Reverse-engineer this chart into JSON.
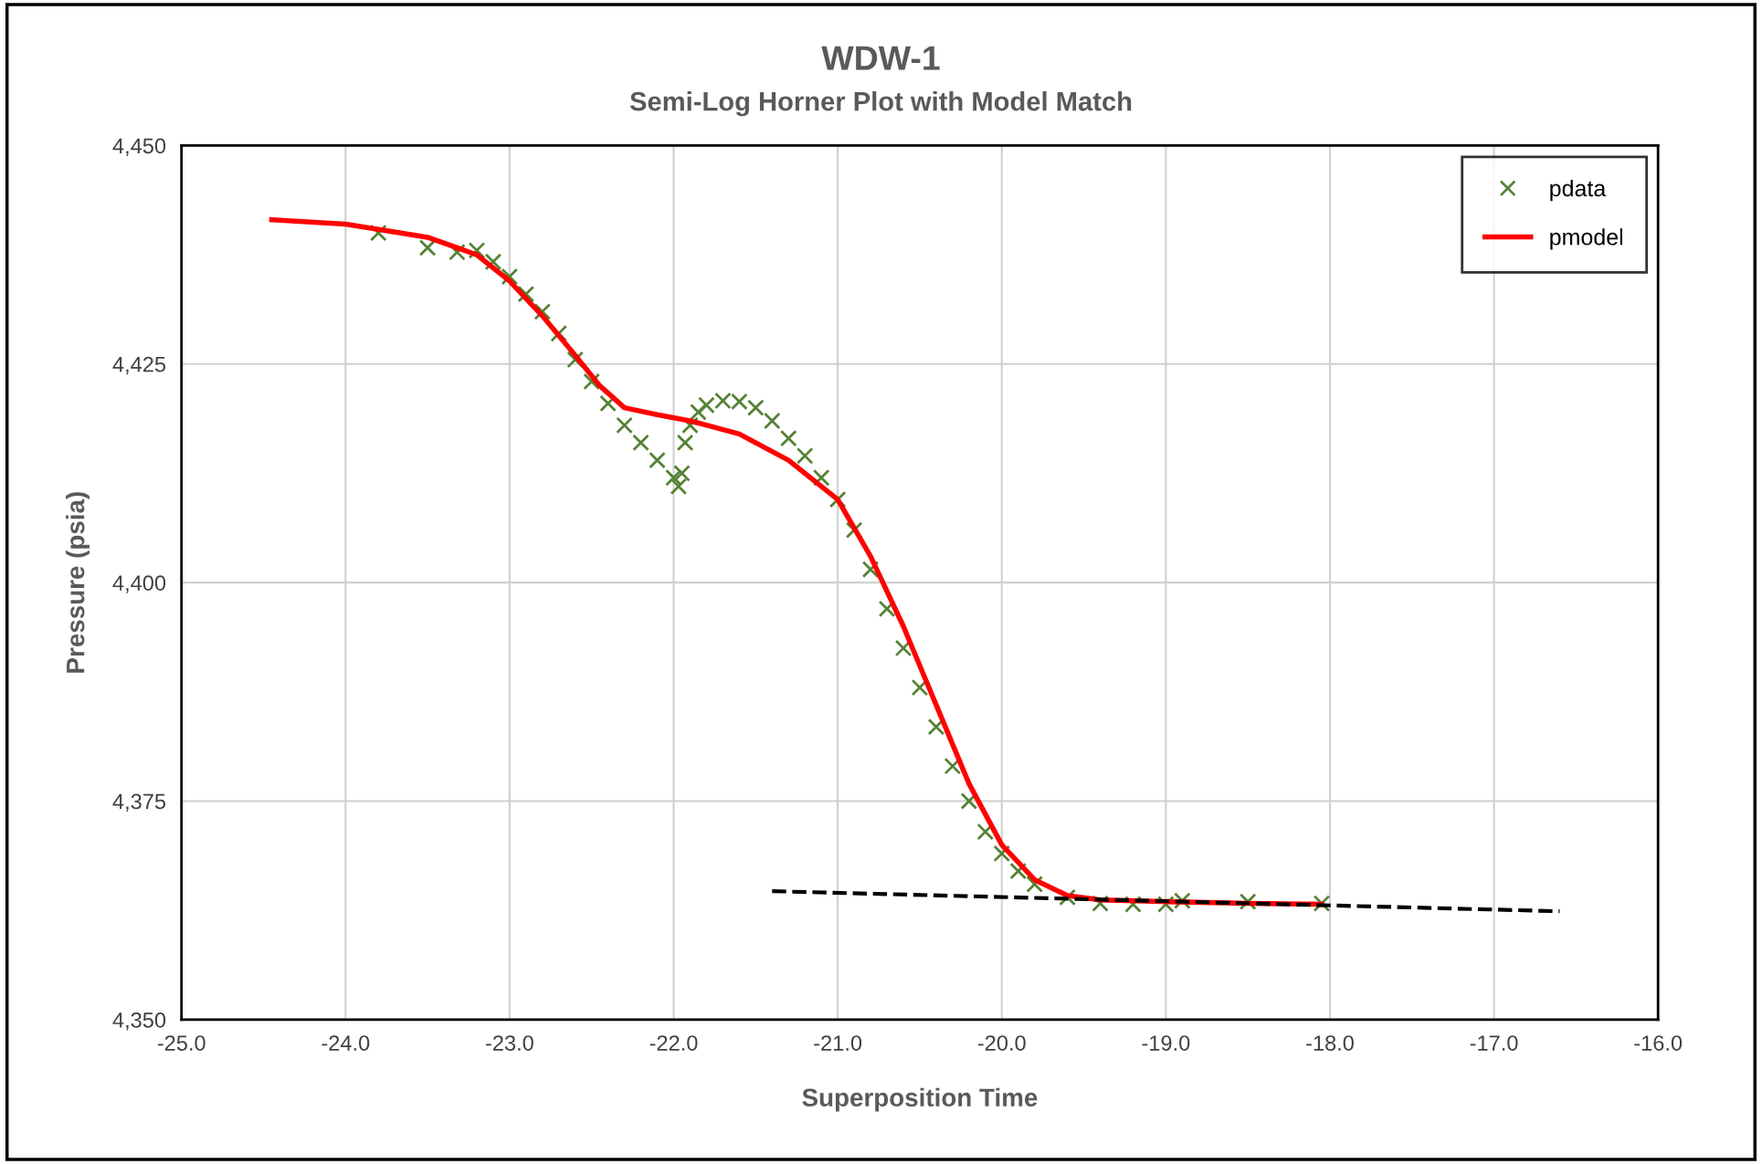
{
  "chart_data": {
    "type": "scatter",
    "title": "WDW-1",
    "subtitle": "Semi-Log Horner Plot with Model Match",
    "xlabel": "Superposition Time",
    "ylabel": "Pressure (psia)",
    "xlim": [
      -25.0,
      -16.0
    ],
    "xticks": [
      {
        "value": -25,
        "label": "-25.0"
      },
      {
        "value": -24,
        "label": "-24.0"
      },
      {
        "value": -23,
        "label": "-23.0"
      },
      {
        "value": -22,
        "label": "-22.0"
      },
      {
        "value": -21,
        "label": "-21.0"
      },
      {
        "value": -20,
        "label": "-20.0"
      },
      {
        "value": -19,
        "label": "-19.0"
      },
      {
        "value": -18,
        "label": "-18.0"
      },
      {
        "value": -17,
        "label": "-17.0"
      },
      {
        "value": -16,
        "label": "-16.0"
      }
    ],
    "ylim": [
      4350,
      4450
    ],
    "yticks": [
      {
        "value": 4350,
        "label": "4,350"
      },
      {
        "value": 4375,
        "label": "4,375"
      },
      {
        "value": 4400,
        "label": "4,400"
      },
      {
        "value": 4425,
        "label": "4,425"
      },
      {
        "value": 4450,
        "label": "4,450"
      }
    ],
    "grid": true,
    "legend": "top right",
    "series": [
      {
        "name": "pdata",
        "marker": "cross",
        "color": "#548235",
        "x": [
          -23.8,
          -23.5,
          -23.32,
          -23.2,
          -23.1,
          -23.0,
          -22.9,
          -22.8,
          -22.7,
          -22.6,
          -22.5,
          -22.4,
          -22.3,
          -22.2,
          -22.1,
          -22.0,
          -21.97,
          -21.95,
          -21.93,
          -21.9,
          -21.85,
          -21.8,
          -21.7,
          -21.6,
          -21.5,
          -21.4,
          -21.3,
          -21.2,
          -21.1,
          -21.0,
          -20.9,
          -20.8,
          -20.7,
          -20.6,
          -20.5,
          -20.4,
          -20.3,
          -20.2,
          -20.1,
          -20.0,
          -19.9,
          -19.8,
          -19.6,
          -19.4,
          -19.2,
          -19.0,
          -18.9,
          -18.5,
          -18.05
        ],
        "values": [
          4440,
          4438.3,
          4437.8,
          4438,
          4436.7,
          4435,
          4433,
          4431,
          4428.5,
          4425.5,
          4423,
          4420.5,
          4418,
          4416,
          4414,
          4412,
          4411,
          4412.5,
          4416,
          4418,
          4419.5,
          4420.3,
          4420.8,
          4420.7,
          4420,
          4418.5,
          4416.5,
          4414.5,
          4412,
          4409.5,
          4406,
          4401.5,
          4397,
          4392.5,
          4388,
          4383.5,
          4379,
          4375,
          4371.5,
          4369,
          4367,
          4365.5,
          4364,
          4363.3,
          4363.2,
          4363.2,
          4363.6,
          4363.5,
          4363.3
        ]
      },
      {
        "name": "pmodel",
        "type": "line",
        "marker": "none",
        "line_style": "solid",
        "color": "#ff0000",
        "x": [
          -24.45,
          -24.0,
          -23.5,
          -23.2,
          -23.0,
          -22.8,
          -22.6,
          -22.45,
          -22.3,
          -22.1,
          -21.9,
          -21.6,
          -21.3,
          -21.0,
          -20.8,
          -20.6,
          -20.4,
          -20.2,
          -20.0,
          -19.8,
          -19.6,
          -19.4,
          -19.0,
          -18.5,
          -18.05
        ],
        "values": [
          4441.5,
          4441.0,
          4439.5,
          4437.5,
          4434.5,
          4430.5,
          4426,
          4422.5,
          4420,
          4419.2,
          4418.5,
          4417,
          4414,
          4409.5,
          4403,
          4395,
          4386,
          4377,
          4370,
          4366,
          4364.2,
          4363.7,
          4363.5,
          4363.3,
          4363.2
        ]
      },
      {
        "type": "line",
        "marker": "none",
        "line_style": "dashed",
        "color": "#000000",
        "x": [
          -21.4,
          -16.6
        ],
        "values": [
          4364.7,
          4362.4
        ]
      }
    ]
  }
}
